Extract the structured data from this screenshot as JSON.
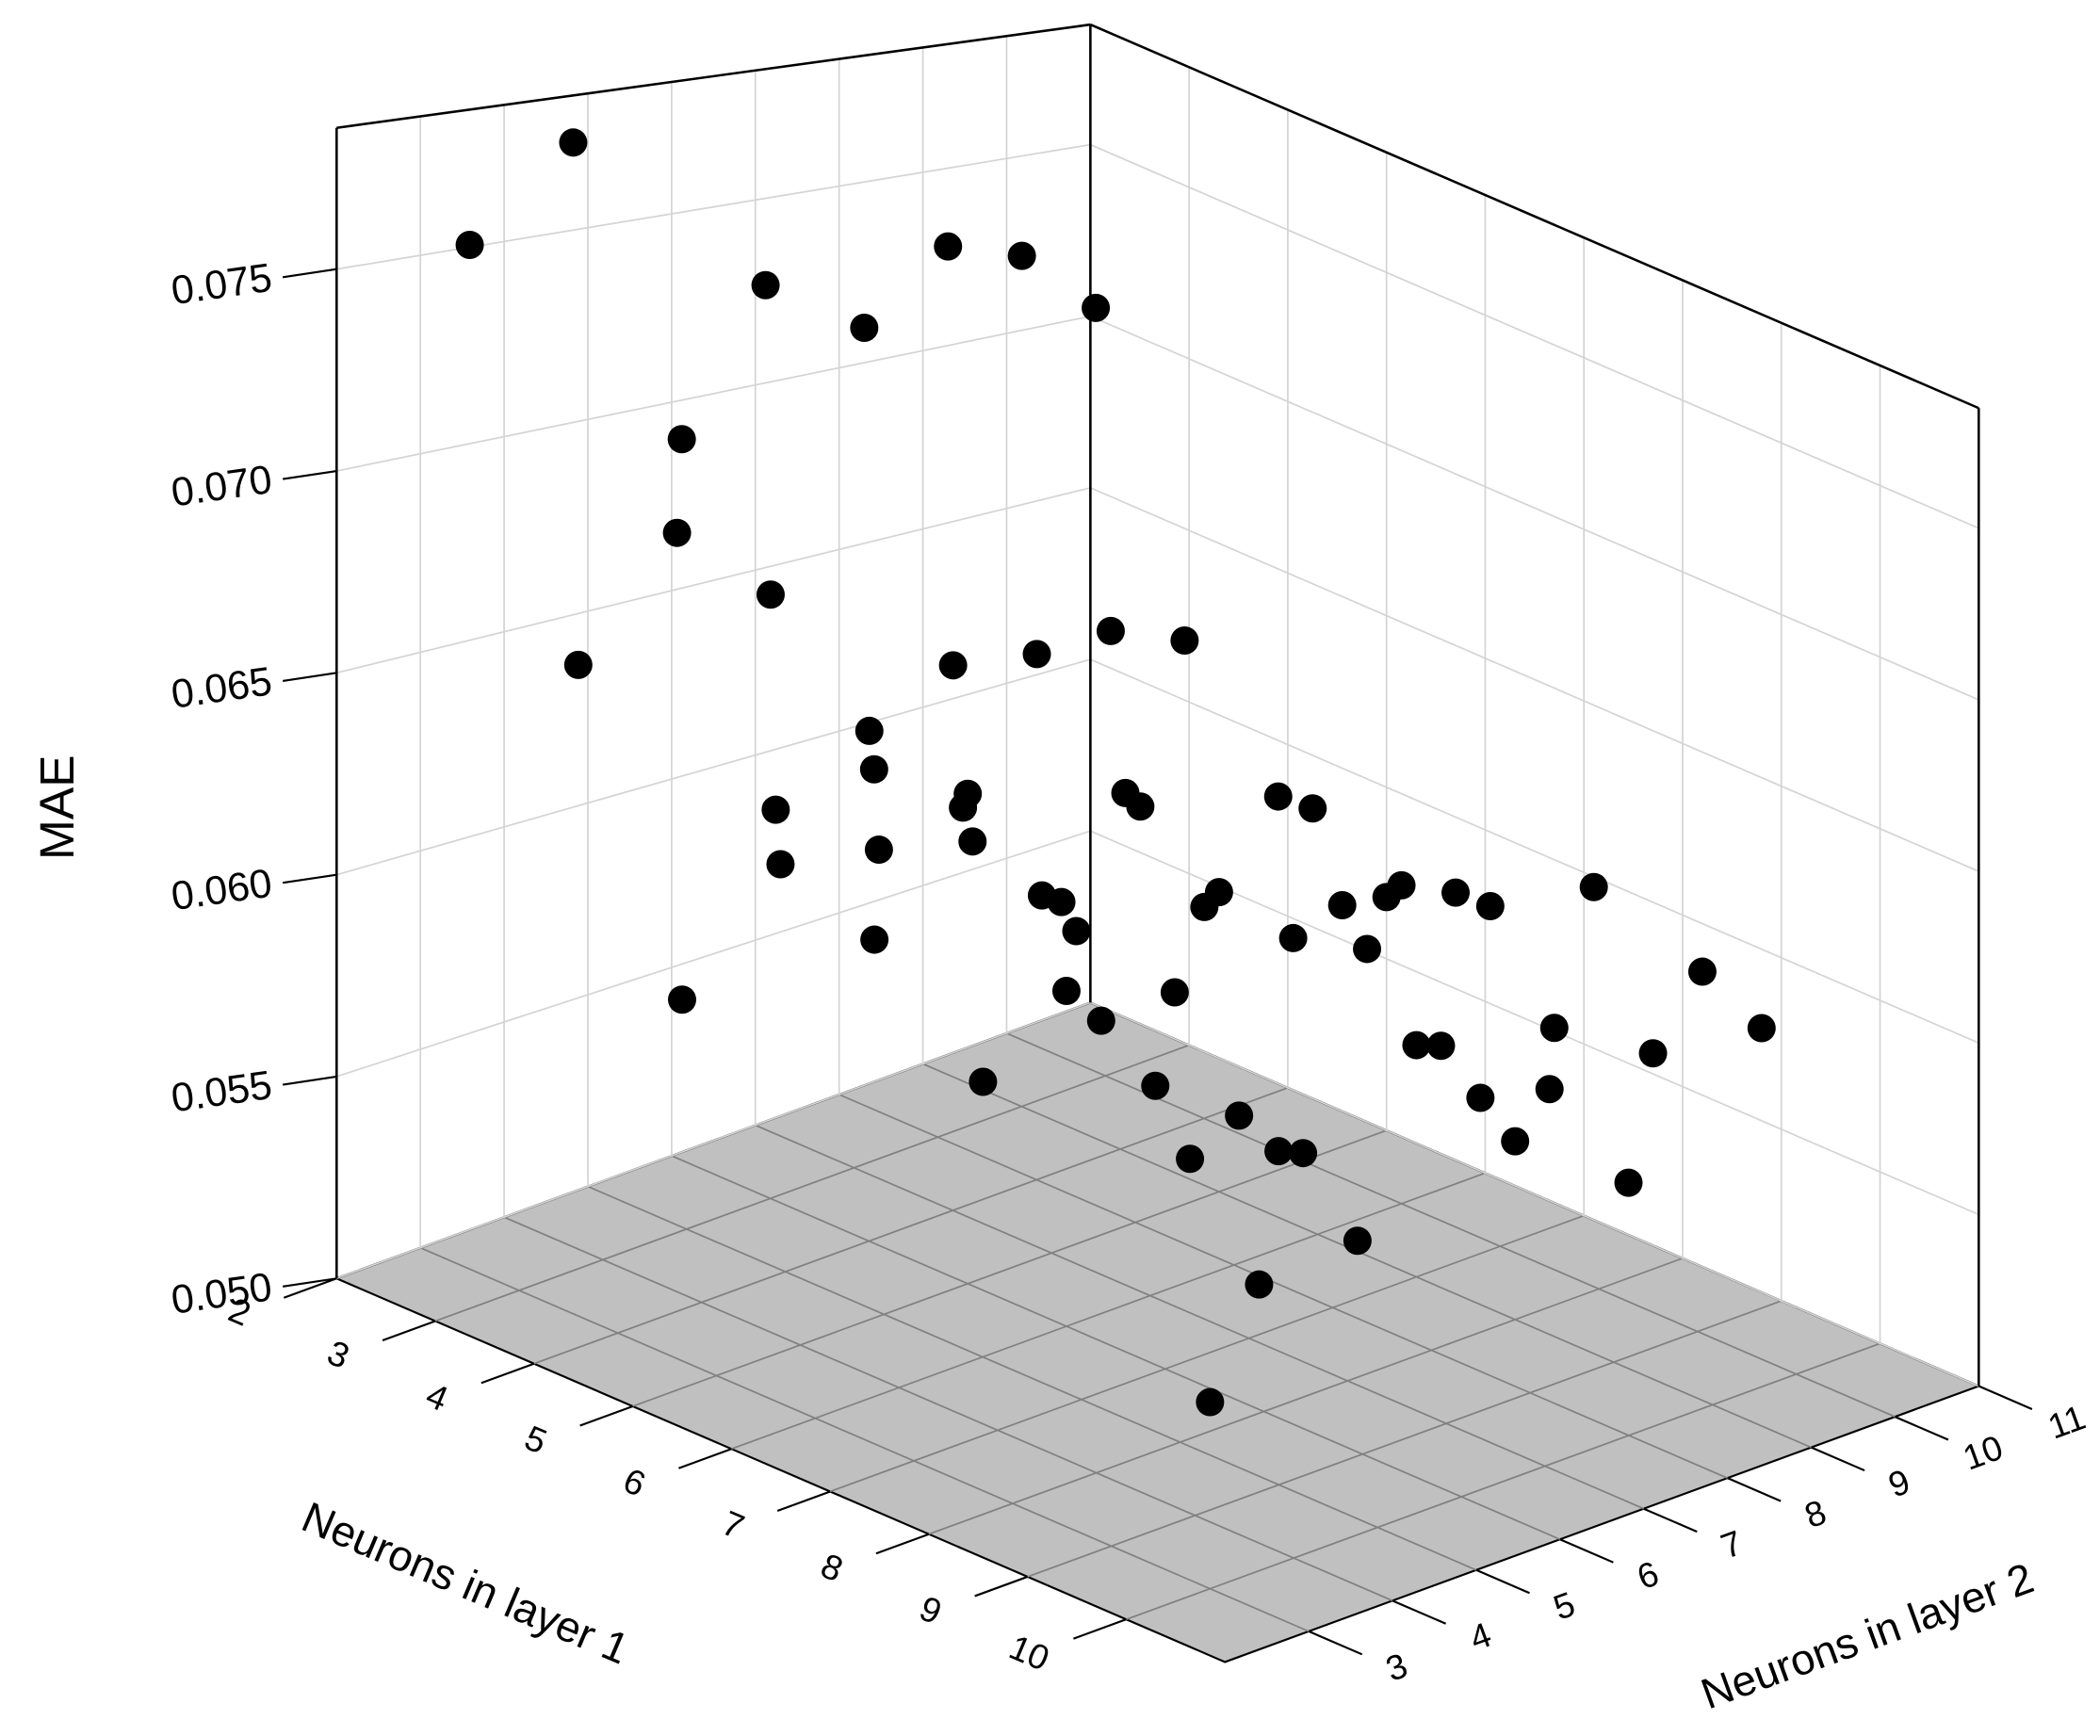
{
  "chart_data": {
    "type": "scatter3d",
    "x_label": "Neurons in layer 1",
    "y_label": "Neurons in layer 2",
    "z_label": "MAE",
    "color": "#000000",
    "floor_color": "#c0c0c0",
    "grid": true,
    "xlim": [
      2,
      11
    ],
    "ylim": [
      2,
      11
    ],
    "zlim": [
      0.05,
      0.0785
    ],
    "xticks": [
      2,
      3,
      4,
      5,
      6,
      7,
      8,
      9,
      10
    ],
    "yticks": [
      3,
      4,
      5,
      6,
      7,
      8,
      9,
      10,
      11
    ],
    "zticks": [
      {
        "value": 0.05,
        "label": "0.050"
      },
      0.055,
      {
        "value": 0.06,
        "label": "0.060"
      },
      0.065,
      {
        "value": 0.07,
        "label": "0.070"
      },
      0.075
    ],
    "x": [
      2.7,
      2.5,
      3.8,
      4.8,
      4.7,
      4.8,
      4.6,
      3.8,
      4.6,
      4.7,
      3.6,
      5.7,
      5.7,
      5.6,
      5.5,
      5.7,
      4.9,
      5.6,
      4.8,
      4.1,
      5.0,
      5.8,
      4.2,
      4.9,
      5.9,
      5.6,
      5.1,
      6.6,
      5.1,
      6.1,
      6.6,
      5.7,
      5.0,
      6.6,
      5.4,
      6.5,
      5.0,
      6.0,
      5.7,
      6.9,
      7.1,
      5.5,
      6.0,
      7.2,
      5.4,
      7.7,
      6.9,
      6.9,
      8.1,
      7.3,
      6.7,
      7.0,
      6.4,
      6.8,
      6.7,
      7.5,
      8.0,
      7.7,
      8.2,
      8.8,
      8.3,
      8.1,
      8.8,
      10.0
    ],
    "y": [
      4,
      3,
      5,
      6,
      7,
      5,
      8,
      4,
      3,
      4,
      3,
      5,
      6,
      7,
      8,
      4,
      5,
      3,
      4,
      6,
      6,
      5,
      7,
      8,
      7,
      9,
      10,
      5,
      7,
      6,
      3,
      8,
      9,
      8,
      10,
      9,
      11,
      10,
      11,
      10,
      11,
      2,
      6,
      5,
      8,
      3,
      6,
      7,
      5,
      7,
      8,
      9,
      10,
      10,
      11,
      10,
      9,
      11,
      11,
      11,
      10,
      7,
      5,
      3
    ],
    "z": [
      0.0783,
      0.0758,
      0.0755,
      0.0773,
      0.0766,
      0.0755,
      0.0747,
      0.0719,
      0.0708,
      0.0689,
      0.0664,
      0.0677,
      0.0675,
      0.0675,
      0.0666,
      0.0665,
      0.0641,
      0.0649,
      0.0621,
      0.0605,
      0.063,
      0.0641,
      0.0602,
      0.0617,
      0.0631,
      0.0618,
      0.0602,
      0.0627,
      0.0596,
      0.0606,
      0.0627,
      0.0595,
      0.0584,
      0.0597,
      0.0578,
      0.0586,
      0.0568,
      0.0591,
      0.0578,
      0.0596,
      0.0597,
      0.0606,
      0.0589,
      0.0601,
      0.0568,
      0.0603,
      0.0574,
      0.0559,
      0.0575,
      0.0554,
      0.0539,
      0.0565,
      0.055,
      0.054,
      0.0551,
      0.0551,
      0.055,
      0.0556,
      0.0586,
      0.0577,
      0.0534,
      0.0539,
      0.055,
      0.0547
    ]
  }
}
